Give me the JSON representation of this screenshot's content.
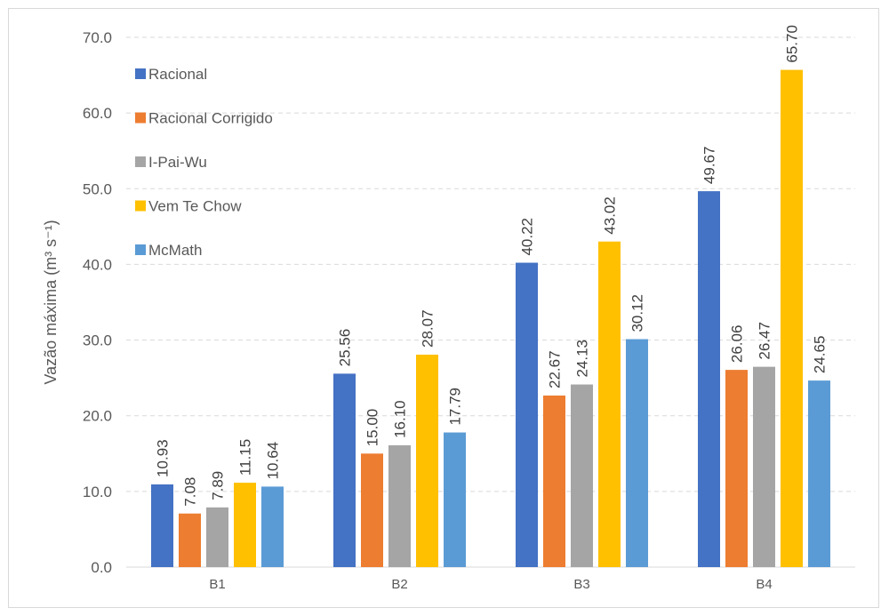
{
  "chart_data": {
    "type": "bar",
    "categories": [
      "B1",
      "B2",
      "B3",
      "B4"
    ],
    "series": [
      {
        "name": "Racional",
        "color": "#4472C4",
        "values": [
          10.93,
          25.56,
          40.22,
          49.67
        ],
        "labels": [
          "10.93",
          "25.56",
          "40.22",
          "49.67"
        ]
      },
      {
        "name": "Racional Corrigido",
        "color": "#ED7D31",
        "values": [
          7.08,
          15.0,
          22.67,
          26.06
        ],
        "labels": [
          "7.08",
          "15.00",
          "22.67",
          "26.06"
        ]
      },
      {
        "name": "I-Pai-Wu",
        "color": "#A5A5A5",
        "values": [
          7.89,
          16.1,
          24.13,
          26.47
        ],
        "labels": [
          "7.89",
          "16.10",
          "24.13",
          "26.47"
        ]
      },
      {
        "name": "Vem Te Chow",
        "color": "#FFC000",
        "values": [
          11.15,
          28.07,
          43.02,
          65.7
        ],
        "labels": [
          "11.15",
          "28.07",
          "43.02",
          "65.70"
        ]
      },
      {
        "name": "McMath",
        "color": "#5B9BD5",
        "values": [
          10.64,
          17.79,
          30.12,
          24.65
        ],
        "labels": [
          "10.64",
          "17.79",
          "30.12",
          "24.65"
        ]
      }
    ],
    "ylabel": "Vazão máxima (m³ s⁻¹)",
    "ylim": [
      0,
      70
    ],
    "yticks": [
      0,
      10,
      20,
      30,
      40,
      50,
      60,
      70
    ],
    "ytick_labels": [
      "0.0",
      "10.0",
      "20.0",
      "30.0",
      "40.0",
      "50.0",
      "60.0",
      "70.0"
    ],
    "grid": "horizontal dashed",
    "legend": "top-left inside plot"
  }
}
